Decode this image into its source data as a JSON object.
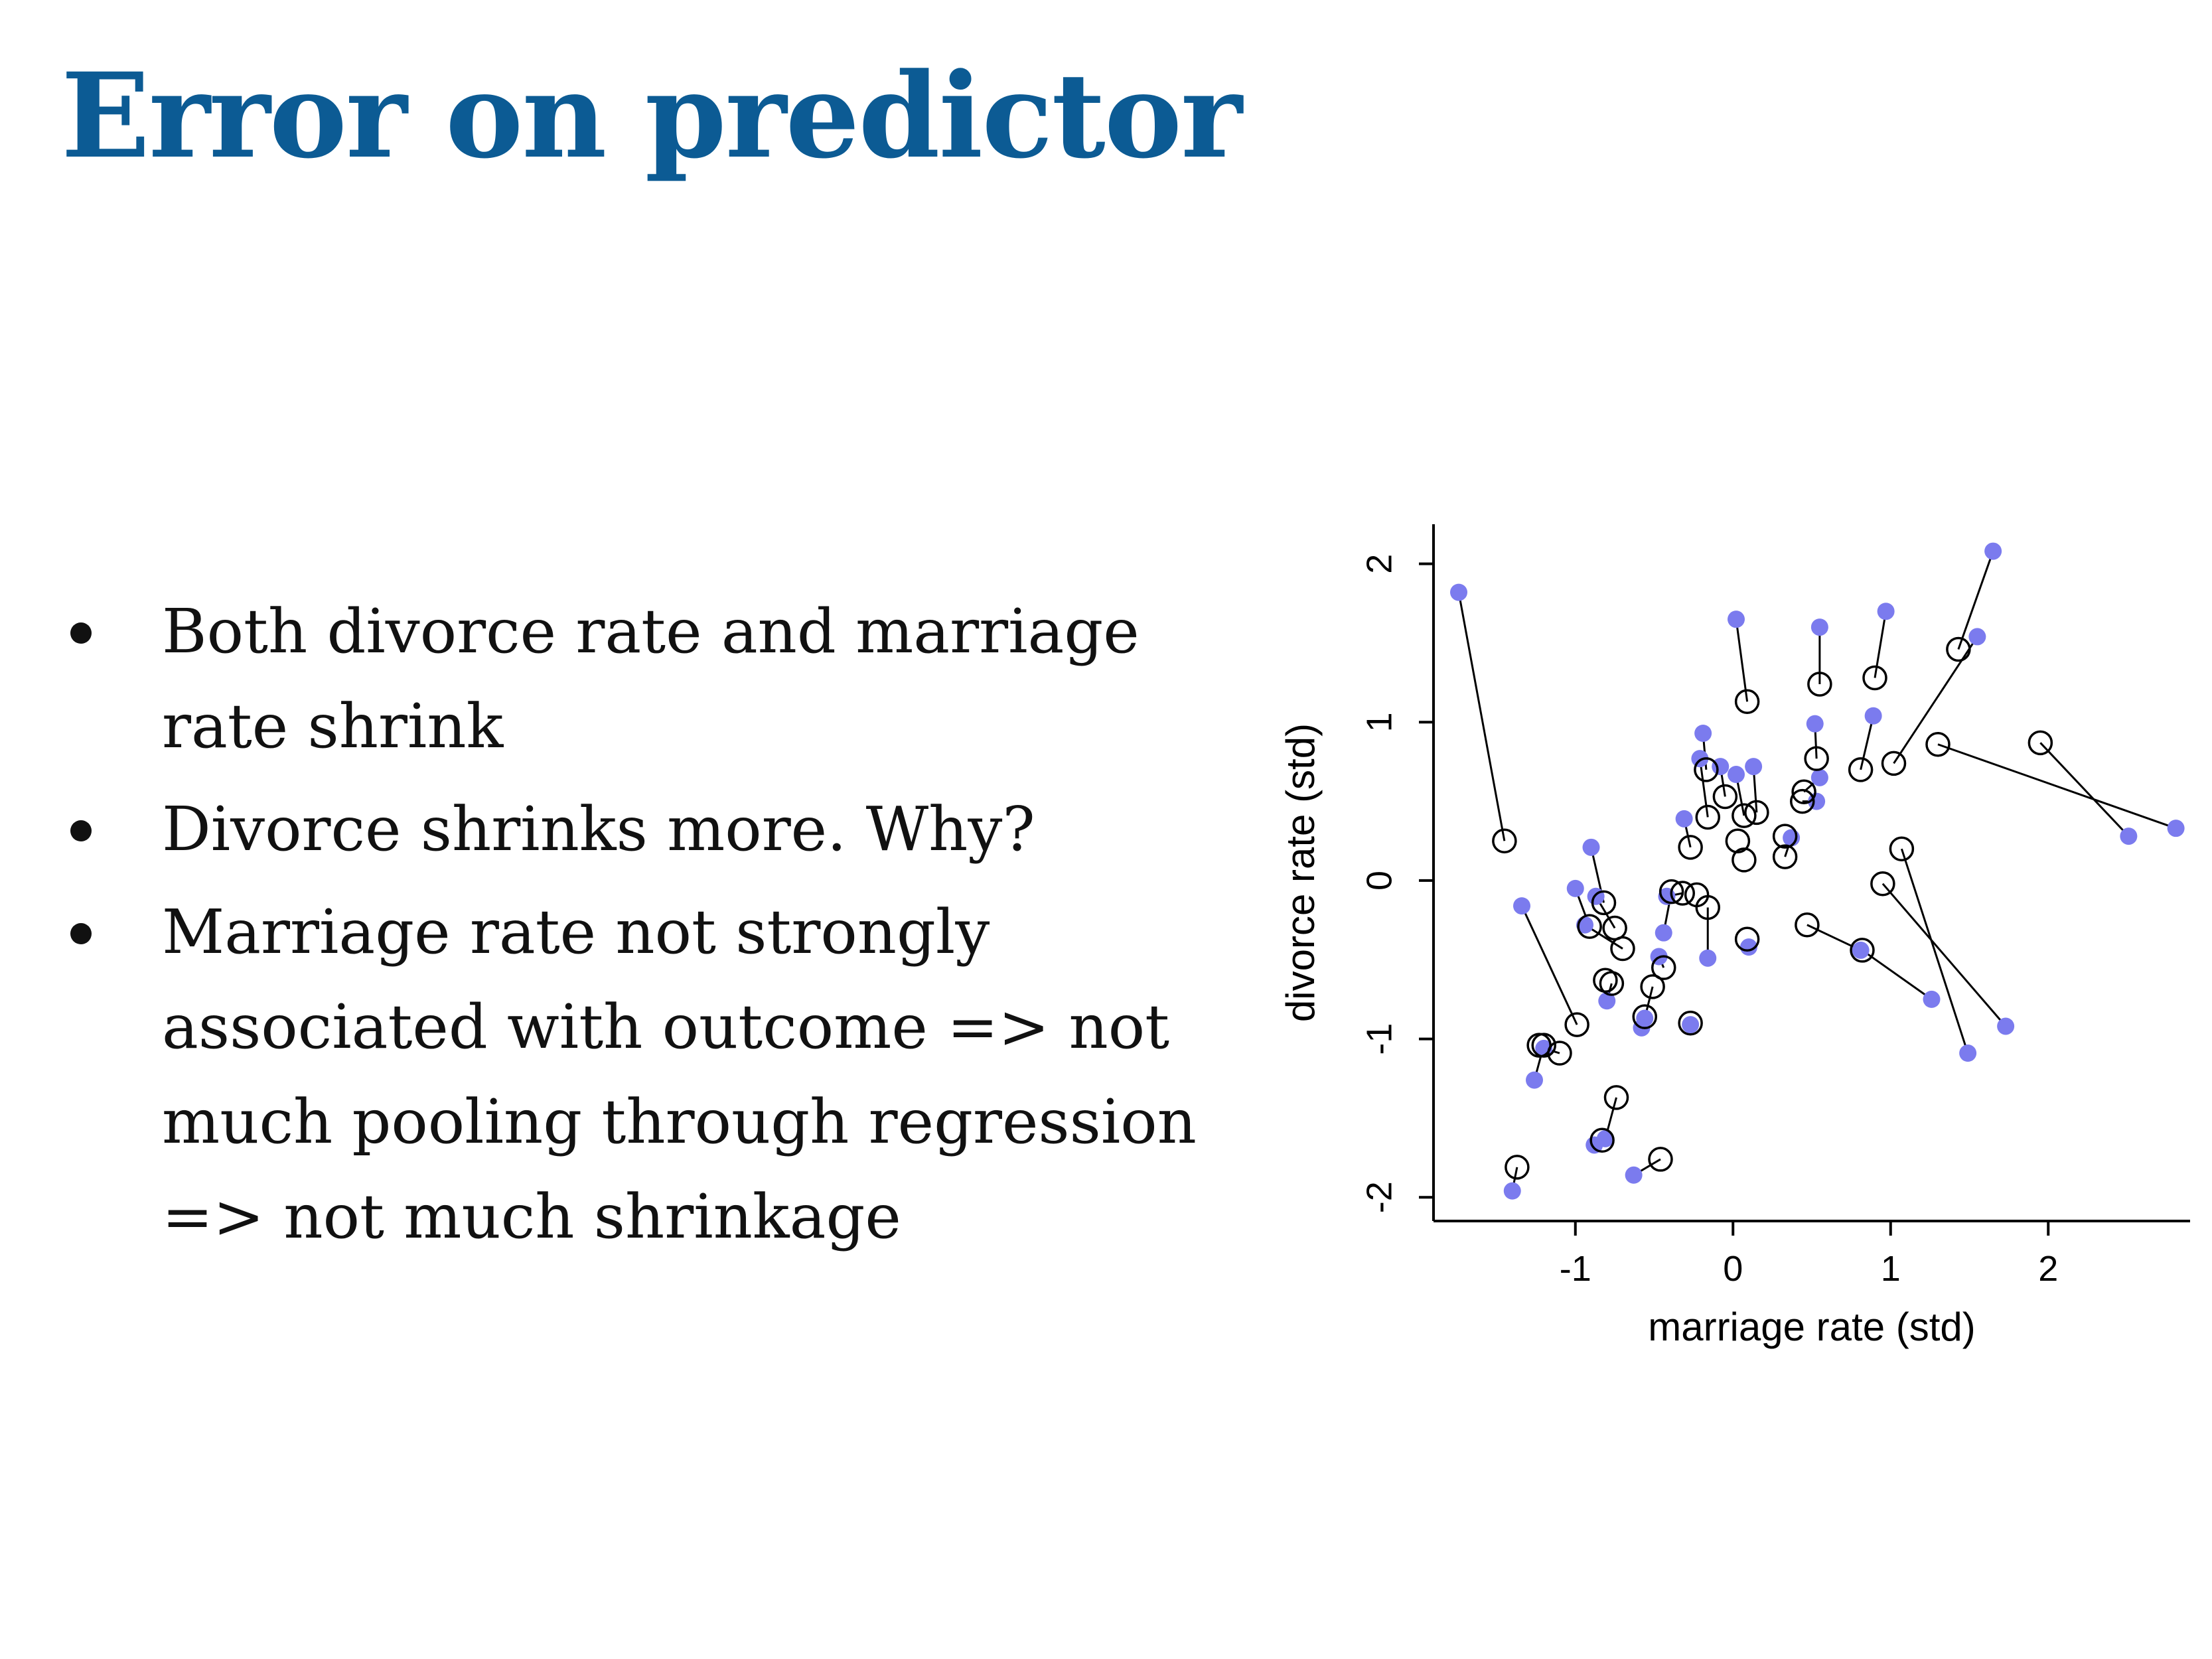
{
  "slide": {
    "title": "Error on predictor",
    "bullets": [
      "Both divorce rate and marriage rate shrink",
      "Divorce shrinks more. Why?",
      "Marriage rate not strongly associated with outcome => not much pooling through regression => not much shrinkage"
    ]
  },
  "chart_data": {
    "type": "scatter",
    "title": "",
    "xlabel": "marriage rate (std)",
    "ylabel": "divorce rate (std)",
    "xlim": [
      -1.9,
      2.9
    ],
    "ylim": [
      -2.15,
      2.25
    ],
    "x_ticks": [
      -1,
      0,
      1,
      2
    ],
    "y_ticks": [
      -2,
      -1,
      0,
      1,
      2
    ],
    "x_tick_labels": [
      "-1",
      "0",
      "1",
      "2"
    ],
    "y_tick_labels": [
      "-2",
      "-1",
      "0",
      "1",
      "2"
    ],
    "grid": false,
    "legend": "none",
    "colors": {
      "observed": "#7b7bee",
      "posterior": "#000000",
      "axis": "#000000"
    },
    "series": [
      {
        "marker": "filled-circle",
        "color": "#7b7bee",
        "points": [
          [
            -1.74,
            1.82
          ],
          [
            0.02,
            1.65
          ],
          [
            0.55,
            1.6
          ],
          [
            0.97,
            1.7
          ],
          [
            1.65,
            2.08
          ],
          [
            1.55,
            1.54
          ],
          [
            0.89,
            1.04
          ],
          [
            0.52,
            0.99
          ],
          [
            -0.19,
            0.93
          ],
          [
            -0.21,
            0.77
          ],
          [
            -0.08,
            0.72
          ],
          [
            0.02,
            0.67
          ],
          [
            0.13,
            0.72
          ],
          [
            0.55,
            0.65
          ],
          [
            0.53,
            0.5
          ],
          [
            -0.31,
            0.39
          ],
          [
            0.37,
            0.27
          ],
          [
            2.51,
            0.28
          ],
          [
            2.81,
            0.33
          ],
          [
            -0.9,
            0.21
          ],
          [
            -1.0,
            -0.05
          ],
          [
            -0.87,
            -0.1
          ],
          [
            -0.42,
            -0.1
          ],
          [
            -0.94,
            -0.28
          ],
          [
            -0.44,
            -0.33
          ],
          [
            -0.47,
            -0.48
          ],
          [
            -0.56,
            -0.87
          ],
          [
            -0.58,
            -0.93
          ],
          [
            -0.8,
            -0.76
          ],
          [
            -0.16,
            -0.49
          ],
          [
            0.1,
            -0.42
          ],
          [
            -1.34,
            -0.16
          ],
          [
            -1.2,
            -1.06
          ],
          [
            -1.26,
            -1.26
          ],
          [
            1.26,
            -0.75
          ],
          [
            1.73,
            -0.92
          ],
          [
            1.49,
            -1.09
          ],
          [
            0.81,
            -0.44
          ],
          [
            -0.81,
            -1.63
          ],
          [
            -0.88,
            -1.67
          ],
          [
            -0.63,
            -1.86
          ],
          [
            -1.4,
            -1.96
          ],
          [
            -0.27,
            -0.91
          ]
        ]
      },
      {
        "marker": "open-circle",
        "color": "#000000",
        "points": [
          [
            -1.45,
            0.25
          ],
          [
            0.09,
            1.13
          ],
          [
            0.55,
            1.24
          ],
          [
            0.9,
            1.28
          ],
          [
            1.43,
            1.46
          ],
          [
            1.02,
            0.74
          ],
          [
            0.81,
            0.7
          ],
          [
            0.53,
            0.77
          ],
          [
            -0.17,
            0.7
          ],
          [
            -0.16,
            0.4
          ],
          [
            -0.05,
            0.53
          ],
          [
            0.07,
            0.41
          ],
          [
            0.15,
            0.43
          ],
          [
            0.45,
            0.56
          ],
          [
            0.44,
            0.5
          ],
          [
            -0.27,
            0.21
          ],
          [
            0.33,
            0.15
          ],
          [
            1.95,
            0.87
          ],
          [
            1.3,
            0.86
          ],
          [
            -0.82,
            -0.14
          ],
          [
            -0.91,
            -0.29
          ],
          [
            -0.75,
            -0.3
          ],
          [
            -0.32,
            -0.08
          ],
          [
            -0.7,
            -0.43
          ],
          [
            -0.39,
            -0.07
          ],
          [
            -0.44,
            -0.55
          ],
          [
            -0.51,
            -0.67
          ],
          [
            -0.56,
            -0.86
          ],
          [
            -0.77,
            -0.65
          ],
          [
            -0.16,
            -0.17
          ],
          [
            0.09,
            -0.37
          ],
          [
            -0.99,
            -0.91
          ],
          [
            -1.1,
            -1.09
          ],
          [
            -1.2,
            -1.04
          ],
          [
            0.82,
            -0.44
          ],
          [
            0.95,
            -0.02
          ],
          [
            1.07,
            0.2
          ],
          [
            0.47,
            -0.28
          ],
          [
            -0.74,
            -1.37
          ],
          [
            -0.83,
            -1.64
          ],
          [
            -0.46,
            -1.76
          ],
          [
            -1.37,
            -1.81
          ],
          [
            -0.27,
            -0.9
          ]
        ]
      }
    ],
    "extra_points": [
      {
        "marker": "open-circle",
        "x": 0.07,
        "y": 0.13
      },
      {
        "marker": "open-circle",
        "x": 0.33,
        "y": 0.28
      },
      {
        "marker": "open-circle",
        "x": -0.23,
        "y": -0.09
      },
      {
        "marker": "open-circle",
        "x": -1.23,
        "y": -1.04
      },
      {
        "marker": "open-circle",
        "x": -0.81,
        "y": -0.63
      },
      {
        "marker": "open-circle",
        "x": 0.03,
        "y": 0.25
      }
    ]
  }
}
